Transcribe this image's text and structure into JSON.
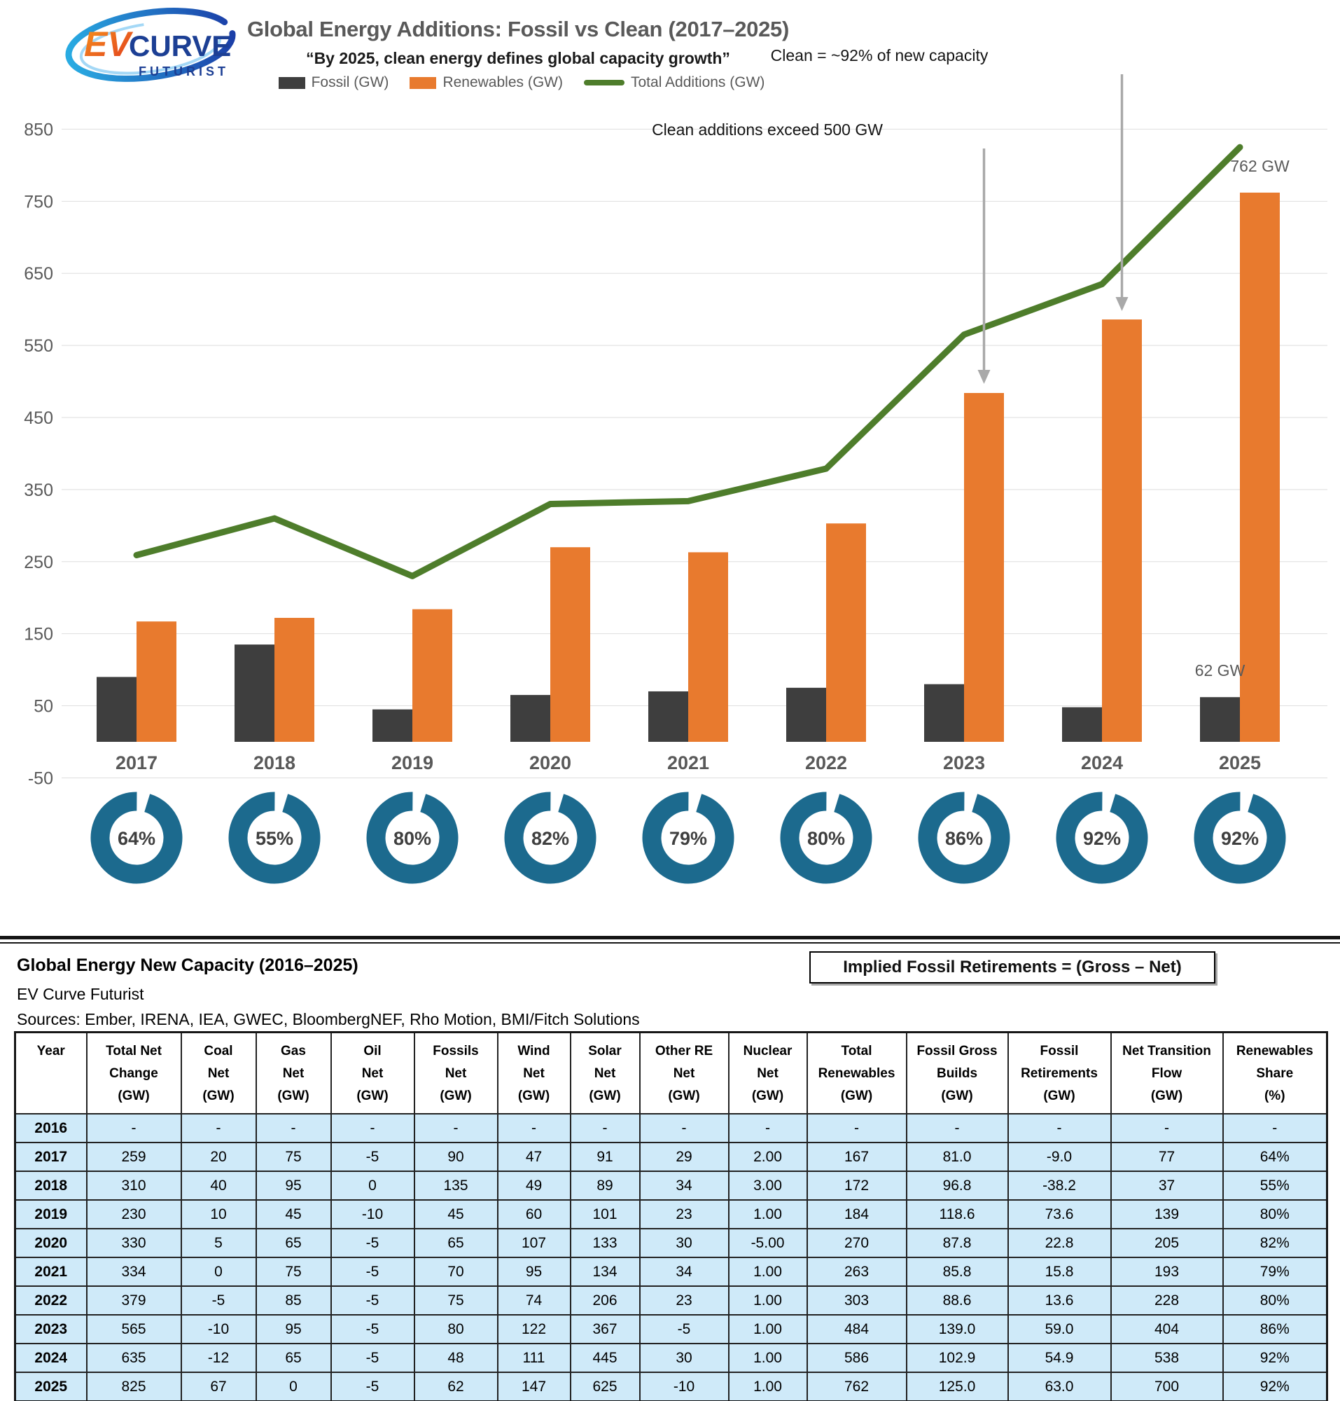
{
  "logo": {
    "ev": "EV",
    "curve": "CURVE",
    "futurist": "FUTURIST"
  },
  "header": {
    "title": "Global Energy Additions: Fossil vs Clean (2017–2025)",
    "subtitle": "“By 2025, clean energy defines global capacity growth”"
  },
  "annotations": {
    "clean92": "Clean = ~92% of new capacity",
    "exceed500": "Clean additions exceed 500 GW"
  },
  "chart_data": {
    "type": "bar+line",
    "categories": [
      "2017",
      "2018",
      "2019",
      "2020",
      "2021",
      "2022",
      "2023",
      "2024",
      "2025"
    ],
    "series": [
      {
        "name": "Fossil (GW)",
        "type": "bar",
        "color": "#3E3E3E",
        "values": [
          90,
          135,
          45,
          65,
          70,
          75,
          80,
          48,
          62
        ]
      },
      {
        "name": "Renewables (GW)",
        "type": "bar",
        "color": "#E87A2E",
        "values": [
          167,
          172,
          184,
          270,
          263,
          303,
          484,
          586,
          762
        ]
      },
      {
        "name": "Total Additions (GW)",
        "type": "line",
        "color": "#4E7D2B",
        "values": [
          259,
          310,
          230,
          330,
          334,
          379,
          565,
          635,
          825
        ]
      }
    ],
    "ylim": [
      -50,
      850
    ],
    "ytick_step": 100,
    "grid": true,
    "legend_position": "top",
    "point_labels": [
      {
        "series": 1,
        "category": "2025",
        "text": "762 GW"
      },
      {
        "series": 0,
        "category": "2025",
        "text": "62 GW"
      }
    ]
  },
  "donut_row": {
    "type": "donut",
    "color": "#1C6A8E",
    "values_pct": [
      64,
      55,
      80,
      82,
      79,
      80,
      86,
      92,
      92
    ]
  },
  "table_section": {
    "title": "Global Energy New Capacity (2016–2025)",
    "subtitle": "EV Curve Futurist",
    "sources": "Sources: Ember, IRENA, IEA, GWEC, BloombergNEF, Rho Motion, BMI/Fitch Solutions",
    "callout": "Implied Fossil Retirements = (Gross – Net)"
  },
  "table": {
    "col_headers": [
      [
        "Year"
      ],
      [
        "Total Net",
        "Change",
        "(GW)"
      ],
      [
        "Coal",
        "Net",
        "(GW)"
      ],
      [
        "Gas",
        "Net",
        "(GW)"
      ],
      [
        "Oil",
        "Net",
        "(GW)"
      ],
      [
        "Fossils",
        "Net",
        "(GW)"
      ],
      [
        "Wind",
        "Net",
        "(GW)"
      ],
      [
        "Solar",
        "Net",
        "(GW)"
      ],
      [
        "Other RE",
        "Net",
        "(GW)"
      ],
      [
        "Nuclear",
        "Net",
        "(GW)"
      ],
      [
        "Total",
        "Renewables",
        "(GW)"
      ],
      [
        "Fossil Gross",
        "Builds",
        "(GW)"
      ],
      [
        "Fossil",
        "Retirements",
        "(GW)"
      ],
      [
        "Net Transition",
        "Flow",
        "(GW)"
      ],
      [
        "Renewables",
        "Share",
        "(%)"
      ]
    ],
    "rows": [
      [
        "2016",
        "-",
        "-",
        "-",
        "-",
        "-",
        "-",
        "-",
        "-",
        "-",
        "-",
        "-",
        "-",
        "-",
        "-"
      ],
      [
        "2017",
        "259",
        "20",
        "75",
        "-5",
        "90",
        "47",
        "91",
        "29",
        "2.00",
        "167",
        "81.0",
        "-9.0",
        "77",
        "64%"
      ],
      [
        "2018",
        "310",
        "40",
        "95",
        "0",
        "135",
        "49",
        "89",
        "34",
        "3.00",
        "172",
        "96.8",
        "-38.2",
        "37",
        "55%"
      ],
      [
        "2019",
        "230",
        "10",
        "45",
        "-10",
        "45",
        "60",
        "101",
        "23",
        "1.00",
        "184",
        "118.6",
        "73.6",
        "139",
        "80%"
      ],
      [
        "2020",
        "330",
        "5",
        "65",
        "-5",
        "65",
        "107",
        "133",
        "30",
        "-5.00",
        "270",
        "87.8",
        "22.8",
        "205",
        "82%"
      ],
      [
        "2021",
        "334",
        "0",
        "75",
        "-5",
        "70",
        "95",
        "134",
        "34",
        "1.00",
        "263",
        "85.8",
        "15.8",
        "193",
        "79%"
      ],
      [
        "2022",
        "379",
        "-5",
        "85",
        "-5",
        "75",
        "74",
        "206",
        "23",
        "1.00",
        "303",
        "88.6",
        "13.6",
        "228",
        "80%"
      ],
      [
        "2023",
        "565",
        "-10",
        "95",
        "-5",
        "80",
        "122",
        "367",
        "-5",
        "1.00",
        "484",
        "139.0",
        "59.0",
        "404",
        "86%"
      ],
      [
        "2024",
        "635",
        "-12",
        "65",
        "-5",
        "48",
        "111",
        "445",
        "30",
        "1.00",
        "586",
        "102.9",
        "54.9",
        "538",
        "92%"
      ],
      [
        "2025",
        "825",
        "67",
        "0",
        "-5",
        "62",
        "147",
        "625",
        "-10",
        "1.00",
        "762",
        "125.0",
        "63.0",
        "700",
        "92%"
      ]
    ]
  }
}
